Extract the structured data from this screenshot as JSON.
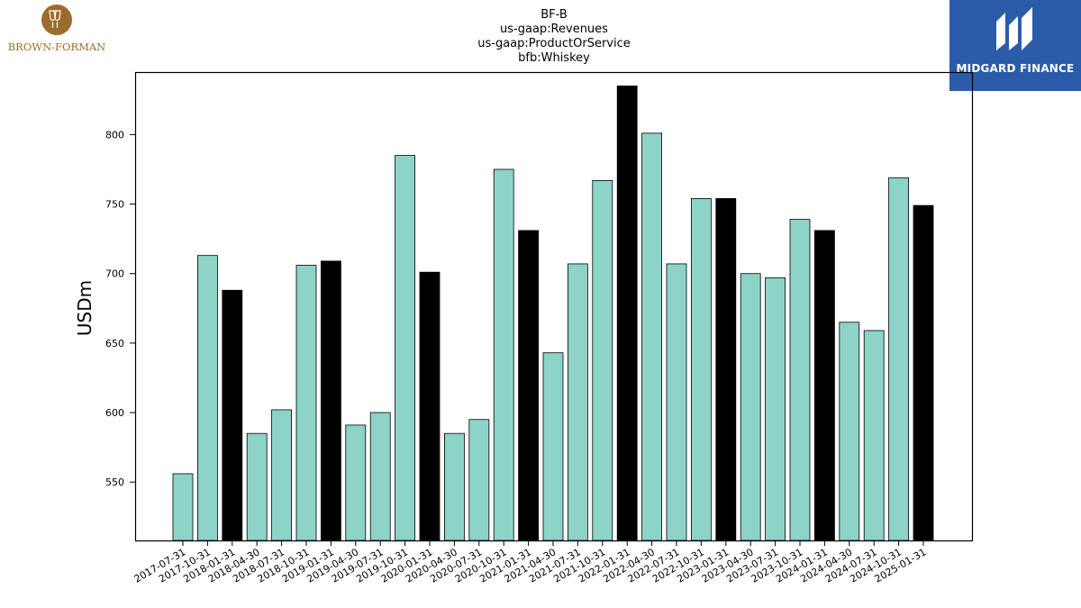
{
  "logos": {
    "left": {
      "text": "BROWN-FORMAN",
      "color": "#9c6b2e"
    },
    "right": {
      "text": "MIDGARD FINANCE",
      "background": "#2a5caa"
    }
  },
  "chart_data": {
    "type": "bar",
    "title_lines": [
      "BF-B",
      "us-gaap:Revenues",
      "us-gaap:ProductOrService",
      "bfb:Whiskey"
    ],
    "xlabel": "",
    "ylabel": "USDm",
    "ylim": [
      508,
      845
    ],
    "yticks": [
      550,
      600,
      650,
      700,
      750,
      800
    ],
    "grid": false,
    "categories": [
      "2017-07-31",
      "2017-10-31",
      "2018-01-31",
      "2018-04-30",
      "2018-07-31",
      "2018-10-31",
      "2019-01-31",
      "2019-04-30",
      "2019-07-31",
      "2019-10-31",
      "2020-01-31",
      "2020-04-30",
      "2020-07-31",
      "2020-10-31",
      "2021-01-31",
      "2021-04-30",
      "2021-07-31",
      "2021-10-31",
      "2022-01-31",
      "2022-04-30",
      "2022-07-31",
      "2022-10-31",
      "2023-01-31",
      "2023-04-30",
      "2023-07-31",
      "2023-10-31",
      "2024-01-31",
      "2024-04-30",
      "2024-07-31",
      "2024-10-31",
      "2025-01-31"
    ],
    "values": [
      556,
      713,
      688,
      585,
      602,
      706,
      709,
      591,
      600,
      785,
      701,
      585,
      595,
      775,
      731,
      643,
      707,
      767,
      835,
      801,
      707,
      754,
      754,
      700,
      697,
      739,
      731,
      665,
      659,
      769,
      749
    ],
    "colors": {
      "default": "#8dd3c7",
      "highlight": "#000000",
      "edge": "#000000"
    },
    "highlight_months": [
      "01"
    ]
  }
}
